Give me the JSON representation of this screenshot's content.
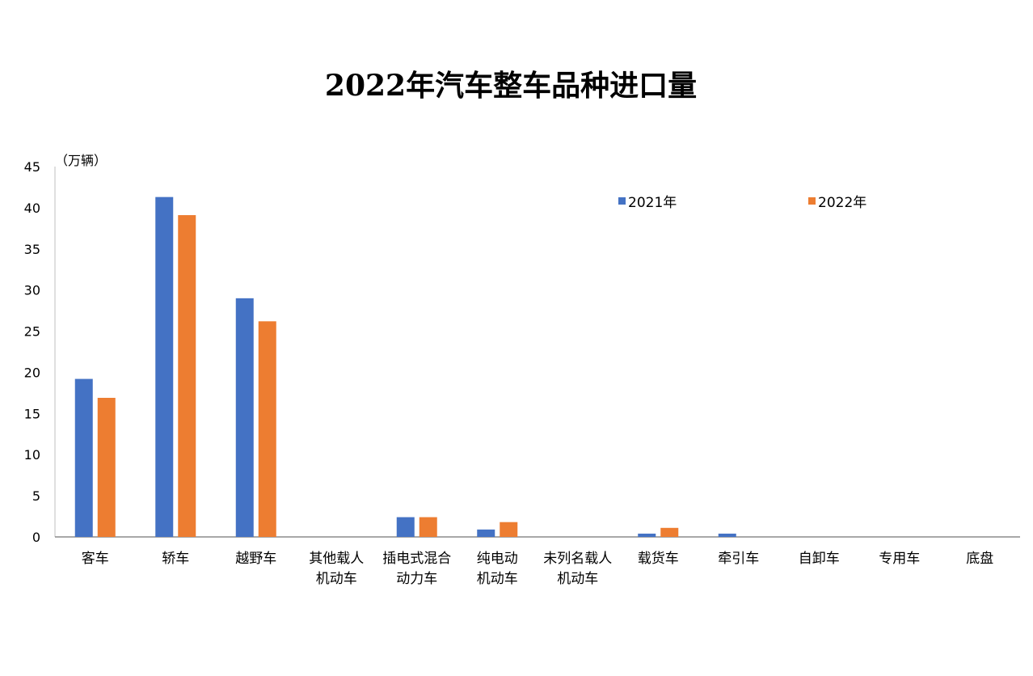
{
  "chart_data": {
    "type": "bar",
    "title": "2022年汽车整车品种进口量",
    "ylabel": "（万辆）",
    "xlabel": "",
    "ylim": [
      0,
      45
    ],
    "yticks": [
      0,
      5,
      10,
      15,
      20,
      25,
      30,
      35,
      40,
      45
    ],
    "grid": false,
    "legend_position": "top-right",
    "categories": [
      [
        "客车"
      ],
      [
        "轿车"
      ],
      [
        "越野车"
      ],
      [
        "其他载人",
        "机动车"
      ],
      [
        "插电式混合",
        "动力车"
      ],
      [
        "纯电动",
        "机动车"
      ],
      [
        "未列名载人",
        "机动车"
      ],
      [
        "载货车"
      ],
      [
        "牵引车"
      ],
      [
        "自卸车"
      ],
      [
        "专用车"
      ],
      [
        "底盘"
      ]
    ],
    "series": [
      {
        "name": "2021年",
        "color": "#4472C4",
        "values": [
          19.2,
          41.3,
          29.0,
          0,
          2.4,
          0.9,
          0,
          0.4,
          0.4,
          0,
          0,
          0
        ]
      },
      {
        "name": "2022年",
        "color": "#ED7D31",
        "values": [
          16.9,
          39.1,
          26.2,
          0,
          2.4,
          1.8,
          0,
          1.1,
          0,
          0,
          0,
          0
        ]
      }
    ]
  }
}
